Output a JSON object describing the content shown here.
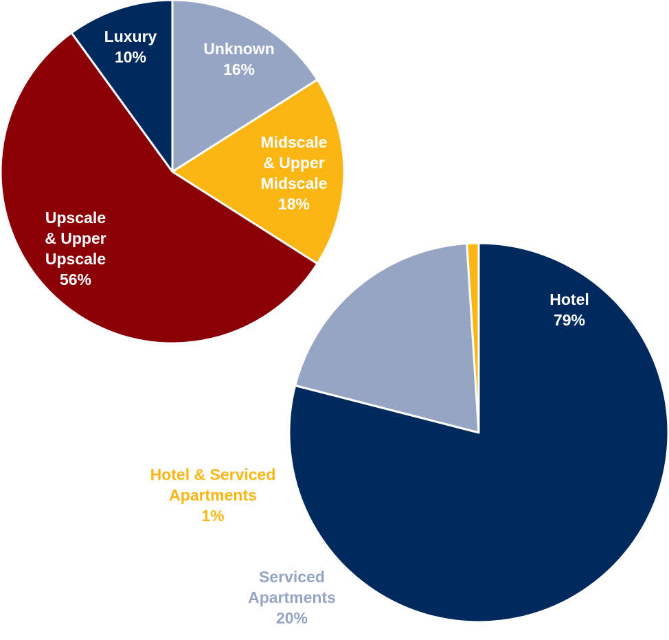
{
  "chart_data": [
    {
      "type": "pie",
      "slices": [
        {
          "label": "Unknown",
          "pct": "16%",
          "value": 16,
          "color": "#97a5c4",
          "label_color": "#ffffff"
        },
        {
          "label": "Midscale & Upper Midscale",
          "pct": "18%",
          "value": 18,
          "color": "#fbb614",
          "label_color": "#ffffff"
        },
        {
          "label": "Upscale & Upper Upscale",
          "pct": "56%",
          "value": 56,
          "color": "#8a0006",
          "label_color": "#ffffff"
        },
        {
          "label": "Luxury",
          "pct": "10%",
          "value": 10,
          "color": "#002a5e",
          "label_color": "#ffffff"
        }
      ]
    },
    {
      "type": "pie",
      "slices": [
        {
          "label": "Hotel",
          "pct": "79%",
          "value": 79,
          "color": "#002a5e",
          "label_color": "#ffffff"
        },
        {
          "label": "Serviced Apartments",
          "pct": "20%",
          "value": 20,
          "color": "#97a5c4",
          "label_color": "#97a5c4"
        },
        {
          "label": "Hotel & Serviced Apartments",
          "pct": "1%",
          "value": 1,
          "color": "#fbb614",
          "label_color": "#fbb614"
        }
      ]
    }
  ]
}
